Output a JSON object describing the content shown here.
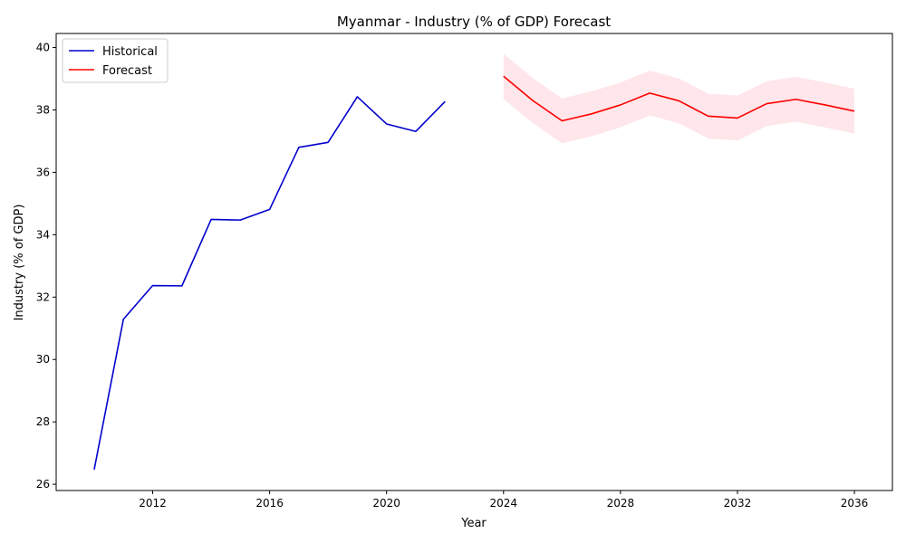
{
  "chart_data": {
    "type": "line",
    "title": "Myanmar - Industry (% of GDP) Forecast",
    "xlabel": "Year",
    "ylabel": "Industry (% of GDP)",
    "xlim": [
      2008.7,
      2037.3
    ],
    "ylim": [
      25.8,
      40.45
    ],
    "xticks": [
      2012,
      2016,
      2020,
      2024,
      2028,
      2032,
      2036
    ],
    "yticks": [
      26,
      28,
      30,
      32,
      34,
      36,
      38,
      40
    ],
    "legend_position": "top-left",
    "series": [
      {
        "name": "Historical",
        "color": "#0000cc",
        "x": [
          2010,
          2011,
          2012,
          2013,
          2014,
          2015,
          2016,
          2017,
          2018,
          2019,
          2020,
          2021,
          2022
        ],
        "values": [
          26.47,
          31.29,
          32.37,
          32.36,
          34.49,
          34.47,
          34.81,
          36.8,
          36.96,
          38.42,
          37.55,
          37.31,
          38.27
        ]
      },
      {
        "name": "Forecast",
        "color": "#ff0000",
        "x": [
          2024,
          2025,
          2026,
          2027,
          2028,
          2029,
          2030,
          2031,
          2032,
          2033,
          2034,
          2035,
          2036
        ],
        "values": [
          39.08,
          38.3,
          37.65,
          37.87,
          38.16,
          38.54,
          38.29,
          37.8,
          37.74,
          38.2,
          38.34,
          38.16,
          37.96
        ],
        "lower": [
          38.35,
          37.58,
          36.93,
          37.15,
          37.44,
          37.82,
          37.57,
          37.08,
          37.02,
          37.48,
          37.62,
          37.44,
          37.24
        ],
        "upper": [
          39.8,
          39.02,
          38.37,
          38.59,
          38.88,
          39.26,
          39.01,
          38.52,
          38.46,
          38.92,
          39.06,
          38.88,
          38.68
        ]
      }
    ],
    "band_color": "#ffc0cb"
  }
}
